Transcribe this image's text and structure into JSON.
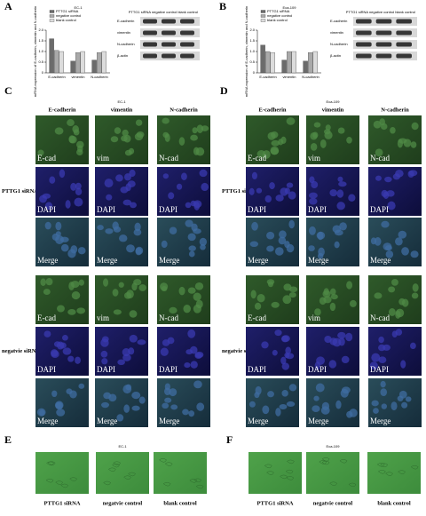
{
  "panel_a": {
    "label": "A",
    "chart": {
      "type": "bar",
      "title": "EC-1",
      "y_label": "mRNA expression of E-cadherin, vimentin and N-cadherin",
      "categories": [
        "E-cadherin",
        "vimentin",
        "N-cadherin"
      ],
      "series": [
        {
          "name": "PTTG1 siRNA",
          "color": "#6b6b6b",
          "values": [
            1.6,
            0.55,
            0.6
          ]
        },
        {
          "name": "negative control",
          "color": "#a9a9a9",
          "values": [
            1.05,
            0.95,
            0.95
          ]
        },
        {
          "name": "blank control",
          "color": "#dcdcdc",
          "values": [
            1.0,
            1.0,
            1.0
          ]
        }
      ],
      "ylim": [
        0,
        2
      ],
      "yticks": [
        0,
        0.5,
        {
          "value": 1,
          "label": "1.0"
        },
        1.5,
        {
          "value": 2,
          "label": "2.0"
        }
      ]
    },
    "blot": {
      "header": "PTTG1 siRNA  negative control  blank control",
      "rows": [
        "E-cadherin",
        "vimentin",
        "N-cadherin",
        "β-actin"
      ]
    }
  },
  "panel_b": {
    "label": "B",
    "chart": {
      "type": "bar",
      "title": "Eca-109",
      "y_label": "mRNA expression of E-cadherin, vimentin and N-cadherin",
      "categories": [
        "E-cadherin",
        "vimentin",
        "N-cadherin"
      ],
      "series": [
        {
          "name": "PTTG1 siRNA",
          "color": "#6b6b6b",
          "values": [
            1.3,
            0.6,
            0.55
          ]
        },
        {
          "name": "negative control",
          "color": "#a9a9a9",
          "values": [
            1.0,
            1.0,
            0.95
          ]
        },
        {
          "name": "blank control",
          "color": "#dcdcdc",
          "values": [
            0.95,
            1.0,
            1.0
          ]
        }
      ],
      "ylim": [
        0,
        2
      ],
      "yticks": [
        0,
        0.5,
        {
          "value": 1,
          "label": "1.0"
        },
        1.5,
        {
          "value": 2,
          "label": "2.0"
        }
      ]
    },
    "blot": {
      "header": "PTTG1 siRNA  negative control  blank control",
      "rows": [
        "E-cadherin",
        "vimentin",
        "N-cadherin",
        "β-actin"
      ]
    }
  },
  "panel_c": {
    "label": "C",
    "title": "EC-1",
    "columns": [
      "E-cadherin",
      "vimentin",
      "N-cadherin"
    ],
    "groups": [
      {
        "name": "PTTG1 siRNA",
        "rows": [
          [
            "E-cad",
            "vim",
            "N-cad"
          ],
          [
            "DAPI",
            "DAPI",
            "DAPI"
          ],
          [
            "Merge",
            "Merge",
            "Merge"
          ]
        ]
      },
      {
        "name": "negatvie siRNA",
        "rows": [
          [
            "E-cad",
            "vim",
            "N-cad"
          ],
          [
            "DAPI",
            "DAPI",
            "DAPI"
          ],
          [
            "Merge",
            "Merge",
            "Merge"
          ]
        ]
      }
    ]
  },
  "panel_d": {
    "label": "D",
    "title": "Eca-109",
    "columns": [
      "E-cadherin",
      "vimentin",
      "N-cadherin"
    ],
    "groups": [
      {
        "name": "PTTG1 siRNA",
        "rows": [
          [
            "E-cad",
            "vim",
            "N-cad"
          ],
          [
            "DAPI",
            "DAPI",
            "DAPI"
          ],
          [
            "Merge",
            "Merge",
            "Merge"
          ]
        ]
      },
      {
        "name": "negatvie siRNA",
        "rows": [
          [
            "E-cad",
            "vim",
            "N-cad"
          ],
          [
            "DAPI",
            "DAPI",
            "DAPI"
          ],
          [
            "Merge",
            "Merge",
            "Merge"
          ]
        ]
      }
    ]
  },
  "panel_e": {
    "label": "E",
    "title": "EC-1",
    "captions": [
      "PTTG1 siRNA",
      "negatvie control",
      "blank control"
    ]
  },
  "panel_f": {
    "label": "F",
    "title": "Eca-109",
    "captions": [
      "PTTG1 siRNA",
      "negatvie control",
      "blank control"
    ]
  }
}
